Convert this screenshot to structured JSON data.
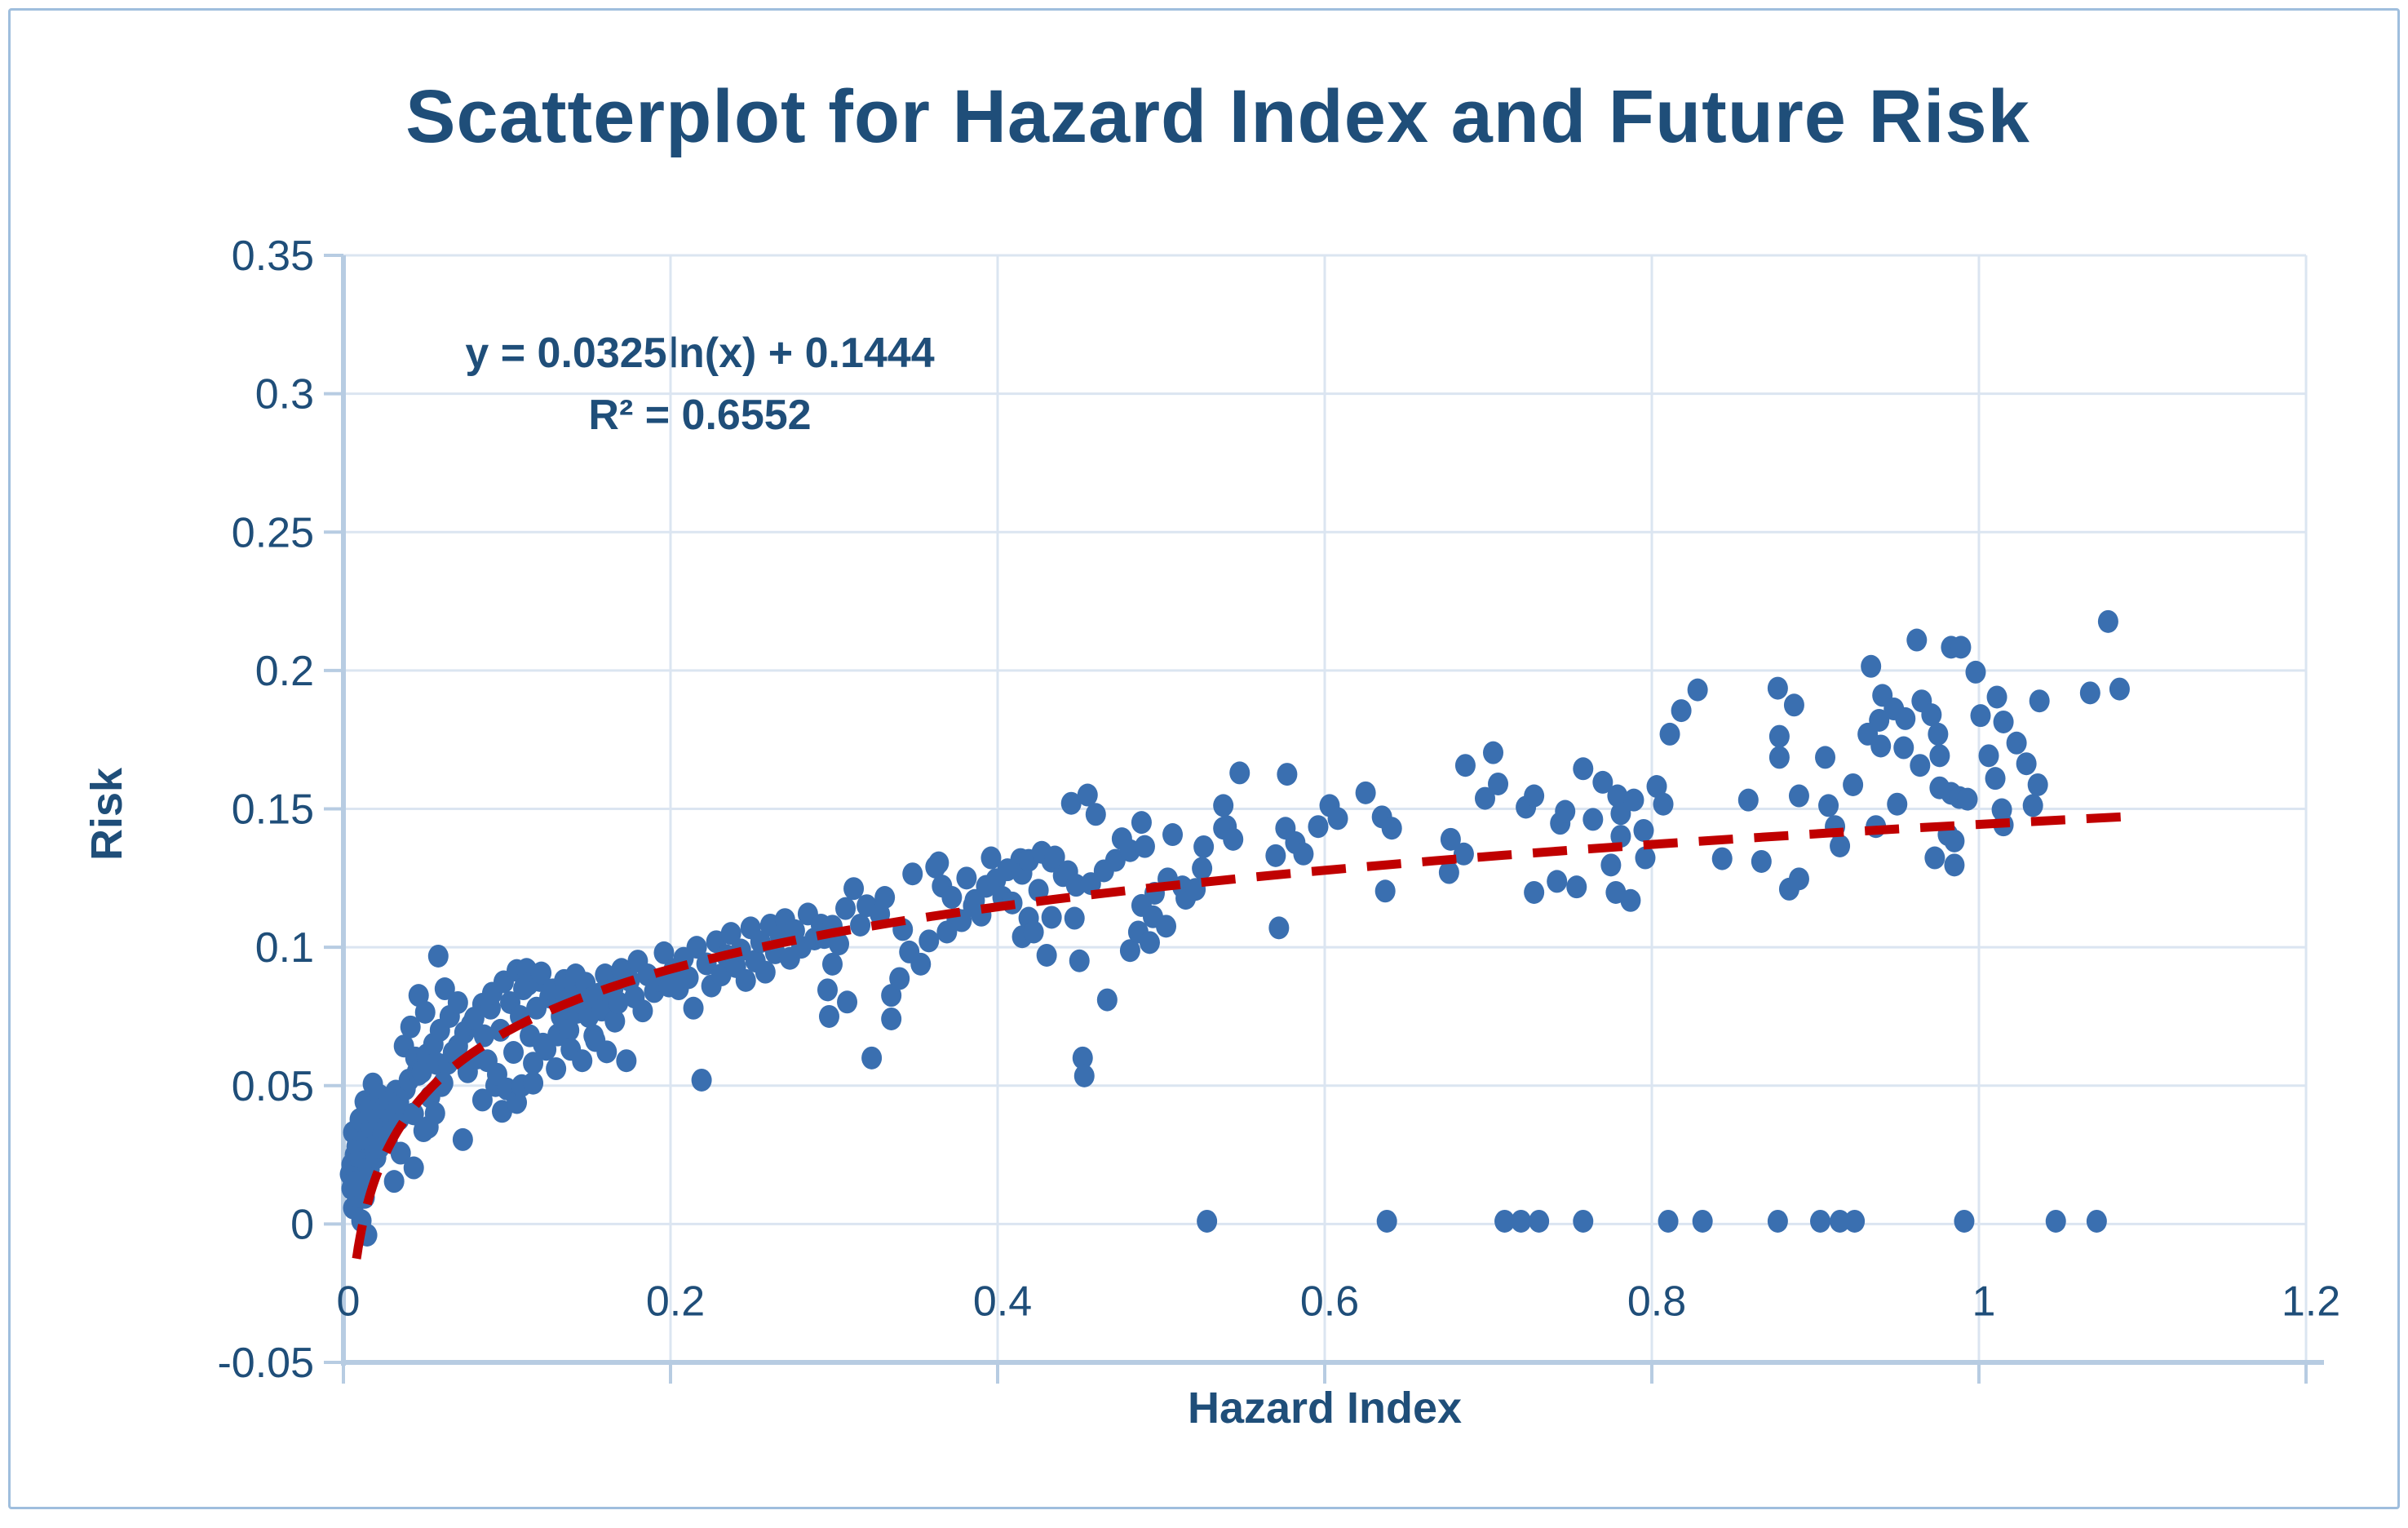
{
  "title": "Scatterplot for Hazard Index and Future Risk",
  "annotation": {
    "line1": "y = 0.0325ln(x) + 0.1444",
    "line2": "R² = 0.6552"
  },
  "colors": {
    "point_fill": "#3a6fb0",
    "trendline": "#c00000",
    "gridline": "#dbe5f1",
    "axis_line": "#b7cce2",
    "text_navy": "#1f4e79",
    "frame_border": "#9fbedd"
  },
  "chart_data": {
    "type": "scatter",
    "title": "Scatterplot for Hazard Index and Future Risk",
    "xlabel": "Hazard Index",
    "ylabel": "Risk",
    "xlim": [
      0,
      1.2
    ],
    "ylim": [
      -0.05,
      0.35
    ],
    "grid": true,
    "x_ticks": [
      0,
      0.2,
      0.4,
      0.6,
      0.8,
      1,
      1.2
    ],
    "x_tick_labels": [
      "0",
      "0.2",
      "0.4",
      "0.6",
      "0.8",
      "1",
      "1.2"
    ],
    "y_ticks": [
      -0.05,
      0,
      0.05,
      0.1,
      0.15,
      0.2,
      0.25,
      0.3,
      0.35
    ],
    "y_tick_labels": [
      "-0.05",
      "0",
      "0.05",
      "0.1",
      "0.15",
      "0.2",
      "0.25",
      "0.3",
      "0.35"
    ],
    "trendline": {
      "kind": "logarithmic",
      "a": 0.0325,
      "b": 0.1444,
      "r2": 0.6552,
      "x_start": 0.008,
      "x_end": 1.09
    },
    "points": [
      [
        0.004,
        0.018
      ],
      [
        0.005,
        0.0215
      ],
      [
        0.005,
        0.0128
      ],
      [
        0.006,
        0.0331
      ],
      [
        0.006,
        0.0058
      ],
      [
        0.007,
        0.025
      ],
      [
        0.008,
        0.015
      ],
      [
        0.008,
        0.028
      ],
      [
        0.009,
        0.01
      ],
      [
        0.01,
        0.0378
      ],
      [
        0.01,
        0.0244
      ],
      [
        0.011,
        0.016
      ],
      [
        0.011,
        0.0012
      ],
      [
        0.012,
        0.03
      ],
      [
        0.013,
        0.0442
      ],
      [
        0.013,
        0.0096
      ],
      [
        0.014,
        0.0308
      ],
      [
        0.0145,
        -0.004
      ],
      [
        0.015,
        0.02
      ],
      [
        0.016,
        0.0198
      ],
      [
        0.016,
        0.042
      ],
      [
        0.017,
        0.035
      ],
      [
        0.018,
        0.0506
      ],
      [
        0.019,
        0.028
      ],
      [
        0.02,
        0.024
      ],
      [
        0.021,
        0.038
      ],
      [
        0.022,
        0.0276
      ],
      [
        0.022,
        0.0465
      ],
      [
        0.024,
        0.033
      ],
      [
        0.025,
        0.0419
      ],
      [
        0.027,
        0.03
      ],
      [
        0.028,
        0.045
      ],
      [
        0.03,
        0.036
      ],
      [
        0.031,
        0.0154
      ],
      [
        0.032,
        0.048
      ],
      [
        0.034,
        0.0378
      ],
      [
        0.034,
        0.0439
      ],
      [
        0.035,
        0.0256
      ],
      [
        0.037,
        0.0643
      ],
      [
        0.038,
        0.0488
      ],
      [
        0.04,
        0.052
      ],
      [
        0.041,
        0.0712
      ],
      [
        0.043,
        0.0203
      ],
      [
        0.043,
        0.0398
      ],
      [
        0.044,
        0.06
      ],
      [
        0.045,
        0.055
      ],
      [
        0.046,
        0.0541
      ],
      [
        0.046,
        0.0826
      ],
      [
        0.048,
        0.055
      ],
      [
        0.049,
        0.0337
      ],
      [
        0.05,
        0.0765
      ],
      [
        0.051,
        0.0611
      ],
      [
        0.052,
        0.035
      ],
      [
        0.053,
        0.0459
      ],
      [
        0.055,
        0.065
      ],
      [
        0.056,
        0.04
      ],
      [
        0.057,
        0.058
      ],
      [
        0.058,
        0.0968
      ],
      [
        0.059,
        0.07
      ],
      [
        0.06,
        0.05
      ],
      [
        0.061,
        0.0509
      ],
      [
        0.062,
        0.085
      ],
      [
        0.064,
        0.0581
      ],
      [
        0.065,
        0.075
      ],
      [
        0.067,
        0.062
      ],
      [
        0.07,
        0.0643
      ],
      [
        0.07,
        0.08
      ],
      [
        0.073,
        0.0305
      ],
      [
        0.074,
        0.0692
      ],
      [
        0.076,
        0.055
      ],
      [
        0.078,
        0.072
      ],
      [
        0.08,
        0.0744
      ],
      [
        0.082,
        0.06
      ],
      [
        0.085,
        0.0794
      ],
      [
        0.085,
        0.0448
      ],
      [
        0.086,
        0.068
      ],
      [
        0.088,
        0.059
      ],
      [
        0.09,
        0.078
      ],
      [
        0.091,
        0.0834
      ],
      [
        0.093,
        0.05
      ],
      [
        0.094,
        0.0541
      ],
      [
        0.096,
        0.07
      ],
      [
        0.097,
        0.0407
      ],
      [
        0.098,
        0.0875
      ],
      [
        0.1,
        0.0488
      ],
      [
        0.102,
        0.08
      ],
      [
        0.104,
        0.062
      ],
      [
        0.106,
        0.0916
      ],
      [
        0.106,
        0.0439
      ],
      [
        0.108,
        0.075
      ],
      [
        0.109,
        0.05
      ],
      [
        0.11,
        0.085
      ],
      [
        0.112,
        0.092
      ],
      [
        0.113,
        0.0866
      ],
      [
        0.114,
        0.068
      ],
      [
        0.116,
        0.0581
      ],
      [
        0.116,
        0.0509
      ],
      [
        0.118,
        0.078
      ],
      [
        0.12,
        0.088
      ],
      [
        0.121,
        0.0907
      ],
      [
        0.122,
        0.065
      ],
      [
        0.124,
        0.0631
      ],
      [
        0.126,
        0.082
      ],
      [
        0.128,
        0.0846
      ],
      [
        0.13,
        0.0561
      ],
      [
        0.131,
        0.0683
      ],
      [
        0.133,
        0.075
      ],
      [
        0.135,
        0.088
      ],
      [
        0.136,
        0.0805
      ],
      [
        0.138,
        0.07
      ],
      [
        0.139,
        0.0631
      ],
      [
        0.141,
        0.085
      ],
      [
        0.142,
        0.09
      ],
      [
        0.143,
        0.0765
      ],
      [
        0.145,
        0.08
      ],
      [
        0.146,
        0.059
      ],
      [
        0.148,
        0.087
      ],
      [
        0.15,
        0.075
      ],
      [
        0.151,
        0.0814
      ],
      [
        0.153,
        0.068
      ],
      [
        0.154,
        0.0663
      ],
      [
        0.156,
        0.083
      ],
      [
        0.158,
        0.0773
      ],
      [
        0.16,
        0.09
      ],
      [
        0.161,
        0.0622
      ],
      [
        0.163,
        0.078
      ],
      [
        0.165,
        0.085
      ],
      [
        0.166,
        0.0733
      ],
      [
        0.168,
        0.08
      ],
      [
        0.17,
        0.092
      ],
      [
        0.173,
        0.059
      ],
      [
        0.175,
        0.088
      ],
      [
        0.178,
        0.082
      ],
      [
        0.18,
        0.095
      ],
      [
        0.183,
        0.077
      ],
      [
        0.186,
        0.09
      ],
      [
        0.19,
        0.084
      ],
      [
        0.193,
        0.088
      ],
      [
        0.196,
        0.098
      ],
      [
        0.199,
        0.086
      ],
      [
        0.202,
        0.092
      ],
      [
        0.205,
        0.085
      ],
      [
        0.208,
        0.096
      ],
      [
        0.211,
        0.089
      ],
      [
        0.214,
        0.078
      ],
      [
        0.216,
        0.1
      ],
      [
        0.219,
        0.052
      ],
      [
        0.222,
        0.094
      ],
      [
        0.225,
        0.086
      ],
      [
        0.228,
        0.102
      ],
      [
        0.231,
        0.09
      ],
      [
        0.234,
        0.097
      ],
      [
        0.237,
        0.105
      ],
      [
        0.24,
        0.093
      ],
      [
        0.243,
        0.099
      ],
      [
        0.246,
        0.088
      ],
      [
        0.249,
        0.107
      ],
      [
        0.252,
        0.095
      ],
      [
        0.255,
        0.102
      ],
      [
        0.258,
        0.091
      ],
      [
        0.261,
        0.108
      ],
      [
        0.264,
        0.098
      ],
      [
        0.267,
        0.104
      ],
      [
        0.27,
        0.11
      ],
      [
        0.273,
        0.096
      ],
      [
        0.276,
        0.106
      ],
      [
        0.28,
        0.1
      ],
      [
        0.284,
        0.112
      ],
      [
        0.288,
        0.103
      ],
      [
        0.292,
        0.108
      ],
      [
        0.294,
        0.1035
      ],
      [
        0.296,
        0.0846
      ],
      [
        0.297,
        0.075
      ],
      [
        0.299,
        0.0939
      ],
      [
        0.299,
        0.1076
      ],
      [
        0.303,
        0.1012
      ],
      [
        0.307,
        0.114
      ],
      [
        0.308,
        0.0802
      ],
      [
        0.312,
        0.1212
      ],
      [
        0.316,
        0.108
      ],
      [
        0.32,
        0.115
      ],
      [
        0.323,
        0.06
      ],
      [
        0.328,
        0.112
      ],
      [
        0.331,
        0.118
      ],
      [
        0.335,
        0.0826
      ],
      [
        0.335,
        0.0741
      ],
      [
        0.34,
        0.0887
      ],
      [
        0.342,
        0.1064
      ],
      [
        0.346,
        0.0983
      ],
      [
        0.348,
        0.1265
      ],
      [
        0.353,
        0.0939
      ],
      [
        0.358,
        0.1023
      ],
      [
        0.362,
        0.129
      ],
      [
        0.364,
        0.1305
      ],
      [
        0.366,
        0.1221
      ],
      [
        0.369,
        0.1055
      ],
      [
        0.372,
        0.118
      ],
      [
        0.375,
        0.11
      ],
      [
        0.378,
        0.1096
      ],
      [
        0.381,
        0.125
      ],
      [
        0.385,
        0.115
      ],
      [
        0.386,
        0.1169
      ],
      [
        0.39,
        0.1116
      ],
      [
        0.393,
        0.122
      ],
      [
        0.396,
        0.1323
      ],
      [
        0.399,
        0.1244
      ],
      [
        0.403,
        0.118
      ],
      [
        0.406,
        0.128
      ],
      [
        0.409,
        0.116
      ],
      [
        0.414,
        0.1317
      ],
      [
        0.415,
        0.1267
      ],
      [
        0.415,
        0.1038
      ],
      [
        0.419,
        0.1314
      ],
      [
        0.419,
        0.1105
      ],
      [
        0.422,
        0.1055
      ],
      [
        0.425,
        0.1206
      ],
      [
        0.427,
        0.1343
      ],
      [
        0.43,
        0.0971
      ],
      [
        0.433,
        0.1311
      ],
      [
        0.433,
        0.1108
      ],
      [
        0.435,
        0.1326
      ],
      [
        0.44,
        0.1259
      ],
      [
        0.443,
        0.1273
      ],
      [
        0.445,
        0.152
      ],
      [
        0.447,
        0.1105
      ],
      [
        0.448,
        0.1224
      ],
      [
        0.45,
        0.0951
      ],
      [
        0.452,
        0.06
      ],
      [
        0.453,
        0.0535
      ],
      [
        0.455,
        0.155
      ],
      [
        0.457,
        0.123
      ],
      [
        0.46,
        0.148
      ],
      [
        0.465,
        0.1276
      ],
      [
        0.467,
        0.081
      ],
      [
        0.472,
        0.1314
      ],
      [
        0.476,
        0.1392
      ],
      [
        0.481,
        0.1349
      ],
      [
        0.481,
        0.0988
      ],
      [
        0.486,
        0.1055
      ],
      [
        0.488,
        0.1451
      ],
      [
        0.488,
        0.1151
      ],
      [
        0.49,
        0.1364
      ],
      [
        0.493,
        0.1017
      ],
      [
        0.495,
        0.111
      ],
      [
        0.496,
        0.1195
      ],
      [
        0.503,
        0.1076
      ],
      [
        0.504,
        0.1247
      ],
      [
        0.507,
        0.1407
      ],
      [
        0.513,
        0.1218
      ],
      [
        0.515,
        0.1177
      ],
      [
        0.521,
        0.1209
      ],
      [
        0.525,
        0.1285
      ],
      [
        0.526,
        0.1363
      ],
      [
        0.528,
        0.001
      ],
      [
        0.538,
        0.1512
      ],
      [
        0.538,
        0.143
      ],
      [
        0.54,
        0.1436
      ],
      [
        0.544,
        0.139
      ],
      [
        0.548,
        0.163
      ],
      [
        0.57,
        0.1331
      ],
      [
        0.572,
        0.107
      ],
      [
        0.576,
        0.143
      ],
      [
        0.577,
        0.1625
      ],
      [
        0.582,
        0.1378
      ],
      [
        0.587,
        0.1337
      ],
      [
        0.596,
        0.1436
      ],
      [
        0.603,
        0.1512
      ],
      [
        0.608,
        0.1465
      ],
      [
        0.625,
        0.1558
      ],
      [
        0.635,
        0.1471
      ],
      [
        0.637,
        0.1203
      ],
      [
        0.638,
        0.001
      ],
      [
        0.641,
        0.143
      ],
      [
        0.676,
        0.127
      ],
      [
        0.677,
        0.139
      ],
      [
        0.685,
        0.1337
      ],
      [
        0.686,
        0.1657
      ],
      [
        0.698,
        0.1538
      ],
      [
        0.703,
        0.1703
      ],
      [
        0.706,
        0.159
      ],
      [
        0.71,
        0.001
      ],
      [
        0.72,
        0.001
      ],
      [
        0.723,
        0.1506
      ],
      [
        0.728,
        0.1547
      ],
      [
        0.728,
        0.1198
      ],
      [
        0.731,
        0.001
      ],
      [
        0.742,
        0.1238
      ],
      [
        0.744,
        0.1448
      ],
      [
        0.747,
        0.1491
      ],
      [
        0.754,
        0.1218
      ],
      [
        0.758,
        0.001
      ],
      [
        0.758,
        0.1645
      ],
      [
        0.764,
        0.1462
      ],
      [
        0.77,
        0.1596
      ],
      [
        0.775,
        0.1297
      ],
      [
        0.778,
        0.1198
      ],
      [
        0.779,
        0.1547
      ],
      [
        0.781,
        0.1483
      ],
      [
        0.781,
        0.1401
      ],
      [
        0.787,
        0.1169
      ],
      [
        0.789,
        0.1532
      ],
      [
        0.795,
        0.1422
      ],
      [
        0.796,
        0.1323
      ],
      [
        0.803,
        0.1581
      ],
      [
        0.807,
        0.1517
      ],
      [
        0.81,
        0.001
      ],
      [
        0.811,
        0.177
      ],
      [
        0.818,
        0.1855
      ],
      [
        0.828,
        0.193
      ],
      [
        0.831,
        0.001
      ],
      [
        0.843,
        0.132
      ],
      [
        0.859,
        0.1532
      ],
      [
        0.867,
        0.131
      ],
      [
        0.877,
        0.1936
      ],
      [
        0.877,
        0.001
      ],
      [
        0.878,
        0.1762
      ],
      [
        0.878,
        0.1686
      ],
      [
        0.884,
        0.121
      ],
      [
        0.887,
        0.1875
      ],
      [
        0.89,
        0.1547
      ],
      [
        0.89,
        0.1247
      ],
      [
        0.903,
        0.001
      ],
      [
        0.906,
        0.1686
      ],
      [
        0.908,
        0.1512
      ],
      [
        0.912,
        0.1436
      ],
      [
        0.915,
        0.1366
      ],
      [
        0.915,
        0.001
      ],
      [
        0.923,
        0.1587
      ],
      [
        0.924,
        0.001
      ],
      [
        0.932,
        0.177
      ],
      [
        0.934,
        0.2015
      ],
      [
        0.937,
        0.1436
      ],
      [
        0.939,
        0.182
      ],
      [
        0.94,
        0.1727
      ],
      [
        0.941,
        0.191
      ],
      [
        0.948,
        0.1861
      ],
      [
        0.95,
        0.1517
      ],
      [
        0.954,
        0.1721
      ],
      [
        0.955,
        0.1826
      ],
      [
        0.962,
        0.211
      ],
      [
        0.964,
        0.1657
      ],
      [
        0.965,
        0.189
      ],
      [
        0.971,
        0.184
      ],
      [
        0.973,
        0.1323
      ],
      [
        0.975,
        0.177
      ],
      [
        0.976,
        0.1692
      ],
      [
        0.976,
        0.1576
      ],
      [
        0.981,
        0.1407
      ],
      [
        0.983,
        0.2084
      ],
      [
        0.983,
        0.1556
      ],
      [
        0.985,
        0.1297
      ],
      [
        0.985,
        0.1384
      ],
      [
        0.988,
        0.1541
      ],
      [
        0.989,
        0.2084
      ],
      [
        0.991,
        0.001
      ],
      [
        0.993,
        0.1535
      ],
      [
        0.998,
        0.1994
      ],
      [
        1.001,
        0.1837
      ],
      [
        1.006,
        0.1692
      ],
      [
        1.01,
        0.161
      ],
      [
        1.011,
        0.1904
      ],
      [
        1.014,
        0.1497
      ],
      [
        1.015,
        0.1814
      ],
      [
        1.015,
        0.1442
      ],
      [
        1.023,
        0.1738
      ],
      [
        1.029,
        0.1663
      ],
      [
        1.033,
        0.1512
      ],
      [
        1.036,
        0.1587
      ],
      [
        1.037,
        0.189
      ],
      [
        1.047,
        0.001
      ],
      [
        1.068,
        0.1919
      ],
      [
        1.072,
        0.001
      ],
      [
        1.079,
        0.2177
      ],
      [
        1.086,
        0.1933
      ]
    ]
  }
}
